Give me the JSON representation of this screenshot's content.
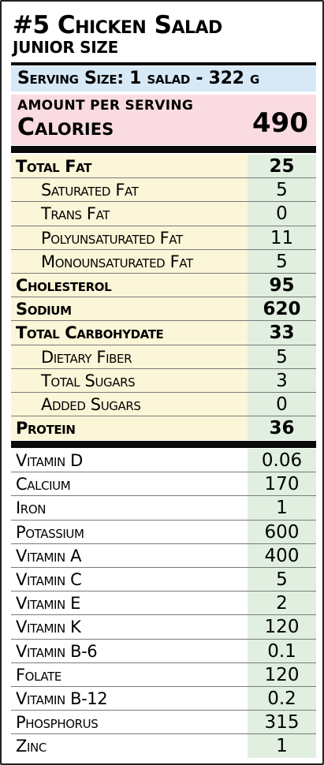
{
  "title": "#5 Chicken Salad",
  "subtitle": "Junior Size",
  "serving": "Serving Size: 1 salad - 322 g",
  "calories": {
    "amount_label": "Amount per serving",
    "label": "Calories",
    "value": "490"
  },
  "nutrients": [
    {
      "name": "Total Fat",
      "value": "25"
    },
    {
      "name": "Saturated Fat",
      "value": "5"
    },
    {
      "name": "Trans Fat",
      "value": "0"
    },
    {
      "name": "Polyunsaturated Fat",
      "value": "11"
    },
    {
      "name": "Monounsaturated Fat",
      "value": "5"
    },
    {
      "name": "Cholesterol",
      "value": "95"
    },
    {
      "name": "Sodium",
      "value": "620"
    },
    {
      "name": "Total Carbohydate",
      "value": "33"
    },
    {
      "name": "Dietary Fiber",
      "value": "5"
    },
    {
      "name": "Total Sugars",
      "value": "3"
    },
    {
      "name": "Added Sugars",
      "value": "0"
    },
    {
      "name": "Protein",
      "value": "36"
    }
  ],
  "vitamins": [
    {
      "name": "Vitamin D",
      "value": "0.06"
    },
    {
      "name": "Calcium",
      "value": "170"
    },
    {
      "name": "Iron",
      "value": "1"
    },
    {
      "name": "Potassium",
      "value": "600"
    },
    {
      "name": "Vitamin A",
      "value": "400"
    },
    {
      "name": "Vitamin C",
      "value": "5"
    },
    {
      "name": "Vitamin E",
      "value": "2"
    },
    {
      "name": "Vitamin K",
      "value": "120"
    },
    {
      "name": "Vitamin B-6",
      "value": "0.1"
    },
    {
      "name": "Folate",
      "value": "120"
    },
    {
      "name": "Vitamin B-12",
      "value": "0.2"
    },
    {
      "name": "Phosphorus",
      "value": "315"
    },
    {
      "name": "Zinc",
      "value": "1"
    }
  ]
}
